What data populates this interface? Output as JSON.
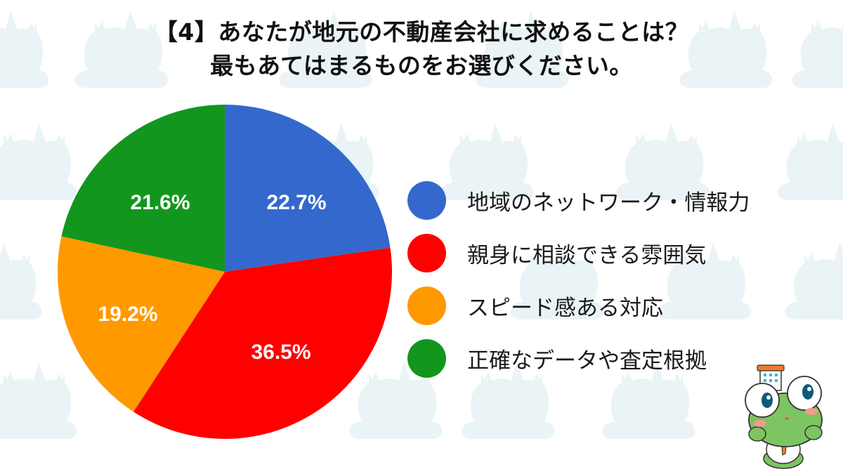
{
  "title": {
    "line1": "【4】あなたが地元の不動産会社に求めることは？",
    "line2": "最もあてはまるものをお選びください。"
  },
  "legend": {
    "items": [
      {
        "label": "地域のネットワーク・情報力",
        "color": "#3468CC"
      },
      {
        "label": "親身に相談できる雰囲気",
        "color": "#FF0000"
      },
      {
        "label": "スピード感ある対応",
        "color": "#FF9900"
      },
      {
        "label": "正確なデータや査定根拠",
        "color": "#12961E"
      }
    ]
  },
  "pie": {
    "labels": [
      "22.7%",
      "36.5%",
      "19.2%",
      "21.6%"
    ]
  },
  "colors": {
    "background": "#FFFFFF",
    "pattern": "#EAF3F6",
    "label_text": "#FFFFFF",
    "title_text": "#111111"
  },
  "chart_data": {
    "type": "pie",
    "title": "【4】あなたが地元の不動産会社に求めることは？ 最もあてはまるものをお選びください。",
    "categories": [
      "地域のネットワーク・情報力",
      "親身に相談できる雰囲気",
      "スピード感ある対応",
      "正確なデータや査定根拠"
    ],
    "values": [
      22.7,
      36.5,
      19.2,
      21.6
    ],
    "colors": [
      "#3468CC",
      "#FF0000",
      "#FF9900",
      "#12961E"
    ],
    "unit": "%",
    "start_angle": "top (12 o'clock)",
    "direction": "clockwise",
    "legend_position": "right",
    "data_labels": true
  }
}
